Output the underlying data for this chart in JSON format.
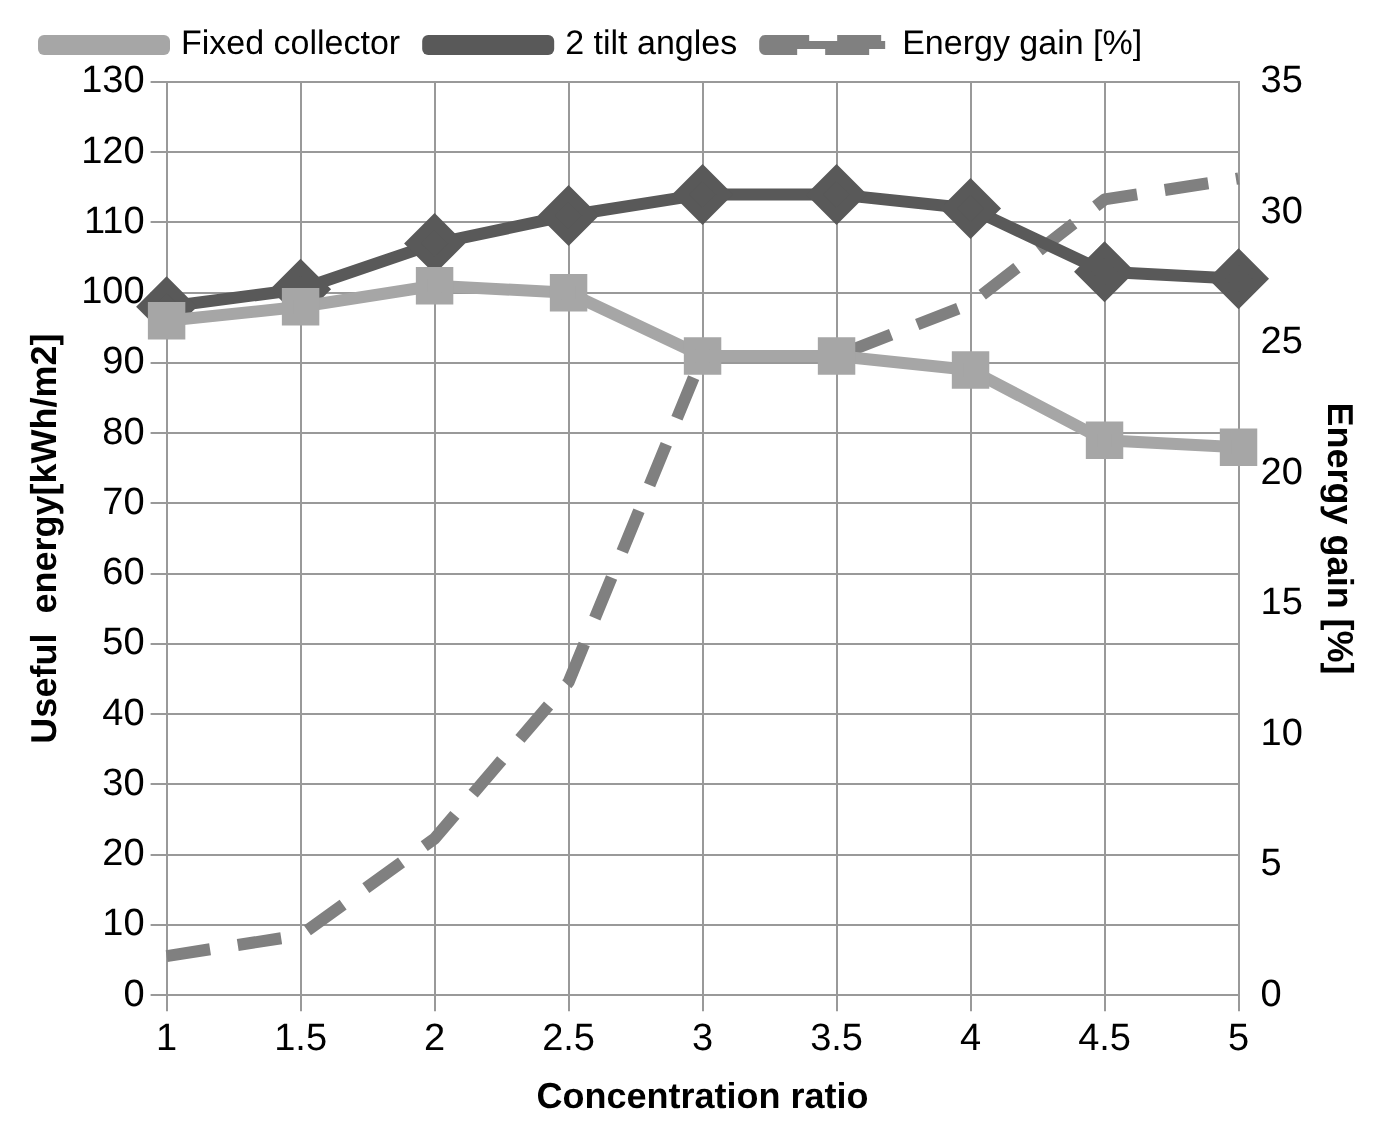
{
  "chart_data": {
    "type": "line",
    "xlabel": "Concentration ratio",
    "ylabel": "Useful  energy[kWh/m2]",
    "y2label": "Energy gain [%]",
    "categories": [
      "1",
      "1.5",
      "2",
      "2.5",
      "3",
      "3.5",
      "4",
      "4.5",
      "5"
    ],
    "series": [
      {
        "name": "2 tilt angles",
        "color": "#595959",
        "marker": "diamond",
        "line_style": "solid",
        "values": [
          98,
          100.5,
          107,
          111,
          114,
          114,
          112,
          103,
          102
        ]
      },
      {
        "name": "Fixed collector",
        "color": "#a6a6a6",
        "marker": "square",
        "line_style": "solid",
        "values": [
          96,
          98,
          101,
          100,
          91,
          91,
          89,
          79,
          78
        ]
      },
      {
        "name": "Energy gain [%]",
        "color": "#808080",
        "marker": "none",
        "line_style": "dashed",
        "axis": "y2",
        "values": [
          1.5,
          2.3,
          6,
          12,
          24.5,
          24.5,
          26.5,
          30.5,
          31.3
        ]
      }
    ],
    "ylim": [
      0,
      130
    ],
    "yticks": [
      0,
      10,
      20,
      30,
      40,
      50,
      60,
      70,
      80,
      90,
      100,
      110,
      120,
      130
    ],
    "y2lim": [
      0,
      35
    ],
    "y2ticks": [
      0,
      5,
      10,
      15,
      20,
      25,
      30,
      35
    ],
    "grid": true,
    "legend": "top"
  }
}
